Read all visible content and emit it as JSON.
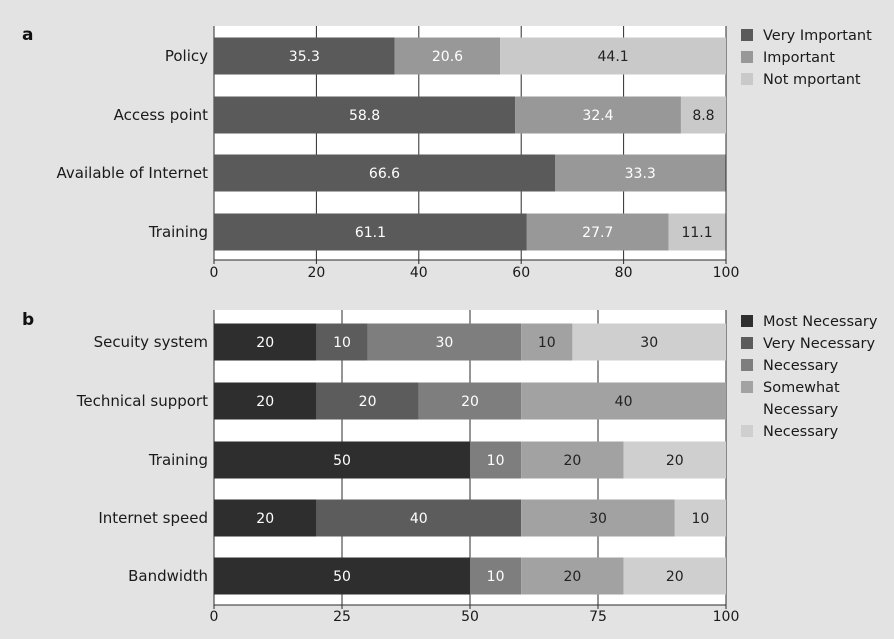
{
  "chart_data": [
    {
      "panel": "a",
      "type": "bar",
      "orientation": "horizontal",
      "stacked": true,
      "categories": [
        "Policy",
        "Access point",
        "Available of Internet",
        "Training"
      ],
      "series": [
        {
          "name": "Very Important",
          "values": [
            35.3,
            58.8,
            66.6,
            61.1
          ],
          "color": "#5a5a5a",
          "label_color": "#ffffff"
        },
        {
          "name": "Important",
          "values": [
            20.6,
            32.4,
            33.3,
            27.7
          ],
          "color": "#989898",
          "label_color": "#ffffff"
        },
        {
          "name": "Not mportant",
          "values": [
            44.1,
            8.8,
            0,
            11.1
          ],
          "color": "#c9c9c9",
          "label_color": "#222222"
        }
      ],
      "xlim": [
        0,
        100
      ],
      "xticks": [
        0,
        20,
        40,
        60,
        80,
        100
      ],
      "grid": true,
      "legend": "right"
    },
    {
      "panel": "b",
      "type": "bar",
      "orientation": "horizontal",
      "stacked": true,
      "categories": [
        "Secuity system",
        "Technical support",
        "Training",
        "Internet speed",
        "Bandwidth"
      ],
      "series": [
        {
          "name": "Most Necessary",
          "values": [
            20,
            20,
            50,
            20,
            50
          ],
          "color": "#2e2e2e",
          "label_color": "#ffffff"
        },
        {
          "name": "Very Necessary",
          "values": [
            10,
            20,
            0,
            40,
            0
          ],
          "color": "#5c5c5c",
          "label_color": "#ffffff"
        },
        {
          "name": "Necessary",
          "values": [
            30,
            20,
            10,
            0,
            10
          ],
          "color": "#7e7e7e",
          "label_color": "#ffffff"
        },
        {
          "name": "Somewhat Necessary",
          "values": [
            10,
            40,
            20,
            30,
            20
          ],
          "color": "#a2a2a2",
          "label_color": "#222222"
        },
        {
          "name": "Necessary",
          "values": [
            30,
            0,
            20,
            10,
            20
          ],
          "color": "#cfcfcf",
          "label_color": "#222222"
        }
      ],
      "xlim": [
        0,
        100
      ],
      "xticks": [
        0,
        25,
        50,
        75,
        100
      ],
      "grid": true,
      "legend": "right"
    }
  ]
}
